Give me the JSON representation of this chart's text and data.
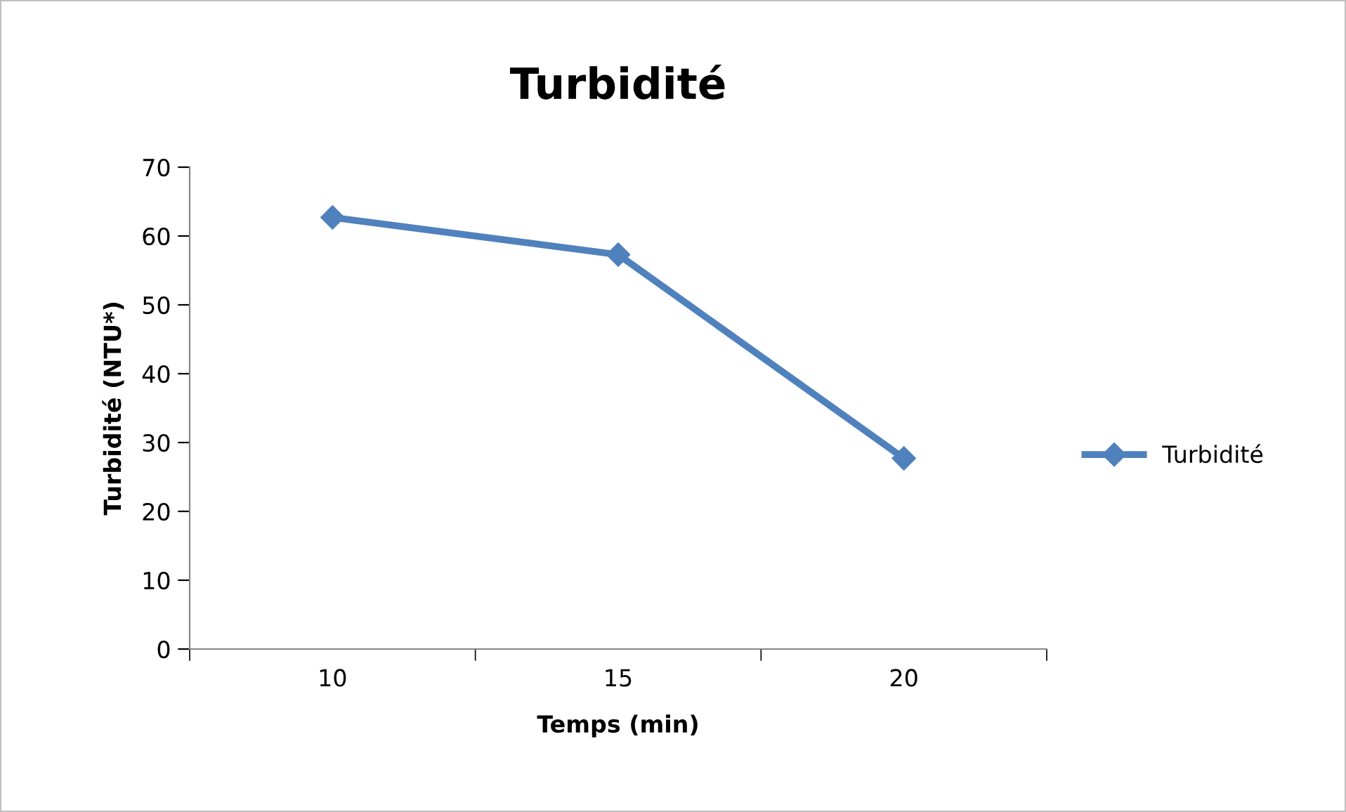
{
  "chart_data": {
    "type": "line",
    "title": "Turbidité",
    "xlabel": "Temps (min)",
    "ylabel": "Turbidité (NTU*)",
    "categories": [
      "10",
      "15",
      "20"
    ],
    "series": [
      {
        "name": "Turbidité",
        "color": "#4f81bd",
        "values": [
          62.7,
          57.3,
          27.7
        ]
      }
    ],
    "ylim": [
      0,
      70
    ],
    "yticks": [
      0,
      10,
      20,
      30,
      40,
      50,
      60,
      70
    ],
    "marker": "diamond",
    "line_style": "solid",
    "grid": false,
    "legend": "right"
  }
}
